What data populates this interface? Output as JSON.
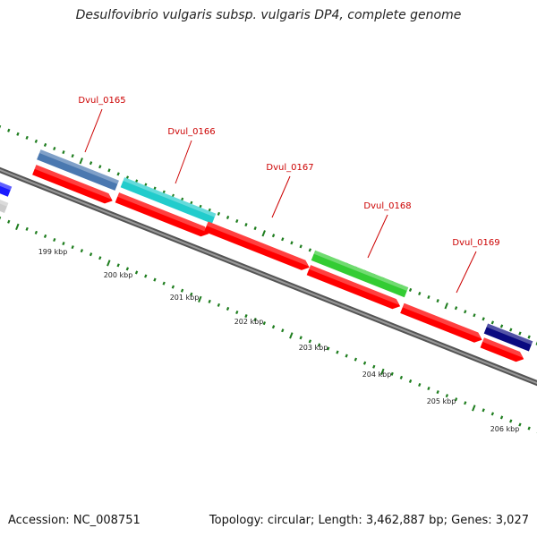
{
  "title": "Desulfovibrio vulgaris subsp. vulgaris DP4, complete genome",
  "footer": {
    "accession": "Accession: NC_008751",
    "topology": "Topology: circular; Length: 3,462,887 bp; Genes: 3,027"
  },
  "colors": {
    "backbone": "#777777",
    "forward_ticks": "#1e7d1e",
    "cds_red": "#ff0000",
    "label_red": "#cc0000",
    "steelblue": "#4a78b0",
    "cyan": "#22cccc",
    "green": "#33cc33",
    "navy": "#0a0a80",
    "blue": "#1a1aff",
    "gray": "#cccccc"
  },
  "ruler": {
    "ticks": [
      "199 kbp",
      "200 kbp",
      "201 kbp",
      "202 kbp",
      "203 kbp",
      "204 kbp",
      "205 kbp",
      "206 kbp"
    ]
  },
  "labeled_genes": [
    "Dvul_0165",
    "Dvul_0166",
    "Dvul_0167",
    "Dvul_0168",
    "Dvul_0169"
  ]
}
